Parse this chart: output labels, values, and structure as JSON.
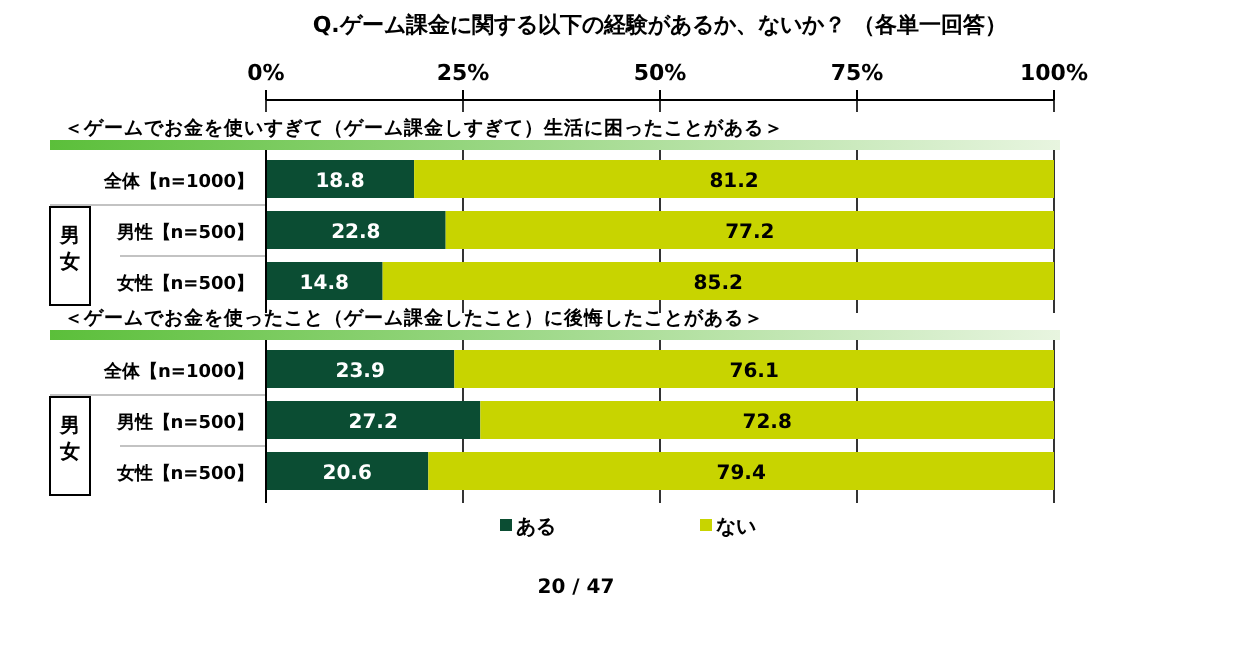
{
  "chart_data": [
    {
      "type": "bar",
      "orientation": "horizontal",
      "stacked": true,
      "title": "Q.ゲーム課金に関する以下の経験があるか、ないか？ （各単一回答）",
      "subtitle": "＜ゲームでお金を使いすぎて（ゲーム課金しすぎて）生活に困ったことがある＞",
      "categories": [
        "全体【n=1000】",
        "男性【n=500】",
        "女性【n=500】"
      ],
      "series": [
        {
          "color": "#0b4d33",
          "values": [
            18.8,
            22.8,
            14.8
          ]
        },
        {
          "color": "#c8d400",
          "values": [
            81.2,
            77.2,
            85.2
          ]
        }
      ],
      "xlim": [
        0,
        100
      ],
      "xticks": [
        {
          "value": 0,
          "label": "0%"
        },
        {
          "value": 25,
          "label": "25%"
        },
        {
          "value": 50,
          "label": "50%"
        },
        {
          "value": 75,
          "label": "75%"
        },
        {
          "value": 100,
          "label": "100%"
        }
      ],
      "grid": "x",
      "data_labels": true,
      "legend": false,
      "annotations": [
        "男女"
      ]
    },
    {
      "type": "bar",
      "orientation": "horizontal",
      "stacked": true,
      "subtitle": "＜ゲームでお金を使ったこと（ゲーム課金したこと）に後悔したことがある＞",
      "categories": [
        "全体【n=1000】",
        "男性【n=500】",
        "女性【n=500】"
      ],
      "series": [
        {
          "name": "ある",
          "color": "#0b4d33",
          "values": [
            23.9,
            27.2,
            20.6
          ]
        },
        {
          "name": "ない",
          "color": "#c8d400",
          "values": [
            76.1,
            72.8,
            79.4
          ]
        }
      ],
      "xlim": [
        0,
        100
      ],
      "xticks": [
        0,
        25,
        50,
        75,
        100
      ],
      "tick_labels": false,
      "grid": "x",
      "data_labels": true,
      "legend": "bottom",
      "annotations": [
        "男女",
        "20 / 47"
      ]
    }
  ]
}
